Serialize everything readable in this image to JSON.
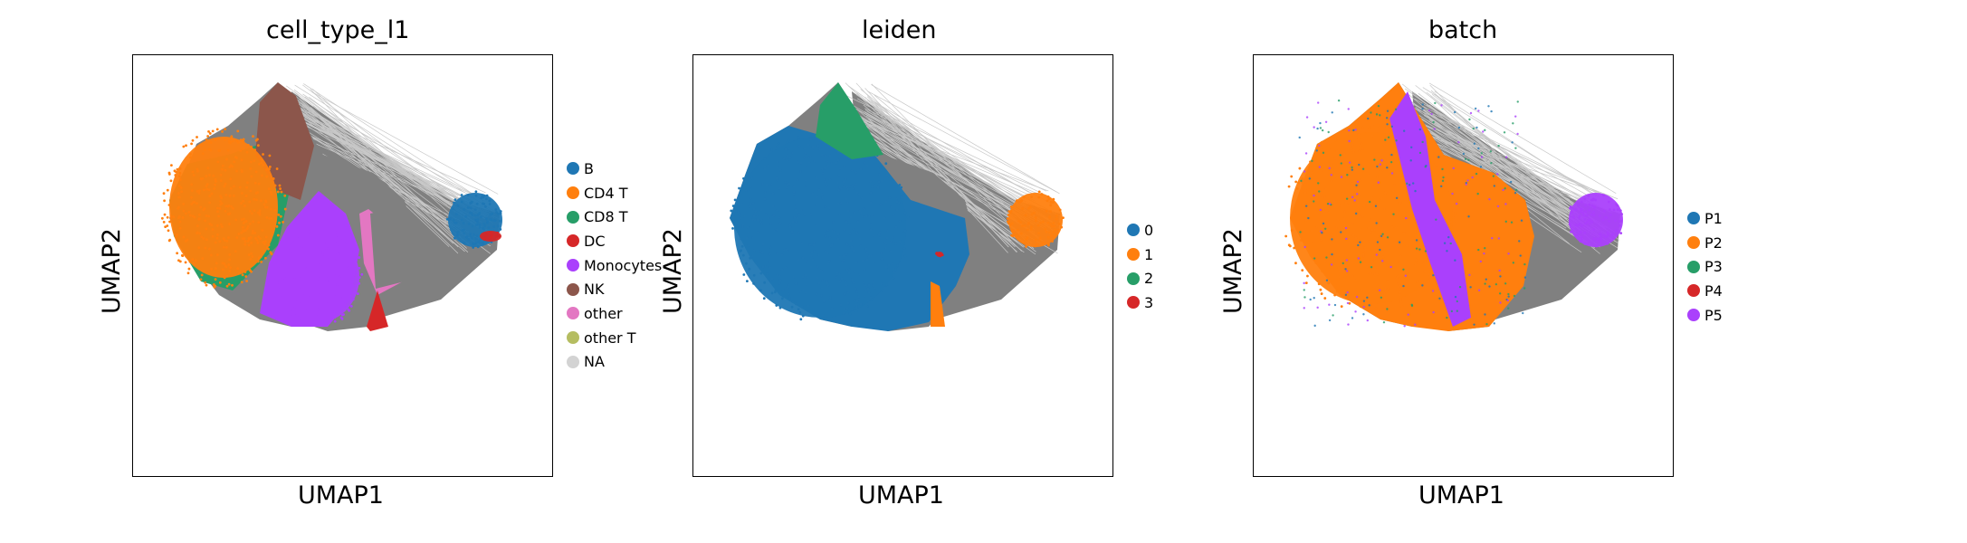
{
  "chart_data": [
    {
      "type": "scatter",
      "title": "cell_type_l1",
      "xlabel": "UMAP1",
      "ylabel": "UMAP2",
      "grid": false,
      "legend_position": "right",
      "legend": [
        {
          "label": "B",
          "color": "#1f77b4"
        },
        {
          "label": "CD4 T",
          "color": "#ff7f0e"
        },
        {
          "label": "CD8 T",
          "color": "#279e68"
        },
        {
          "label": "DC",
          "color": "#d62728"
        },
        {
          "label": "Monocytes",
          "color": "#aa40fc"
        },
        {
          "label": "NK",
          "color": "#8c564b"
        },
        {
          "label": "other",
          "color": "#e377c2"
        },
        {
          "label": "other T",
          "color": "#b5bd61"
        },
        {
          "label": "NA",
          "color": "#d3d3d3"
        }
      ]
    },
    {
      "type": "scatter",
      "title": "leiden",
      "xlabel": "UMAP1",
      "ylabel": "UMAP2",
      "grid": false,
      "legend_position": "right",
      "legend": [
        {
          "label": "0",
          "color": "#1f77b4"
        },
        {
          "label": "1",
          "color": "#ff7f0e"
        },
        {
          "label": "2",
          "color": "#279e68"
        },
        {
          "label": "3",
          "color": "#d62728"
        }
      ]
    },
    {
      "type": "scatter",
      "title": "batch",
      "xlabel": "UMAP1",
      "ylabel": "UMAP2",
      "grid": false,
      "legend_position": "right",
      "legend": [
        {
          "label": "P1",
          "color": "#1f77b4"
        },
        {
          "label": "P2",
          "color": "#ff7f0e"
        },
        {
          "label": "P3",
          "color": "#279e68"
        },
        {
          "label": "P4",
          "color": "#d62728"
        },
        {
          "label": "P5",
          "color": "#aa40fc"
        }
      ]
    }
  ],
  "colors": {
    "edge_gray": "#808080",
    "edge_light": "#c8c8c8"
  }
}
